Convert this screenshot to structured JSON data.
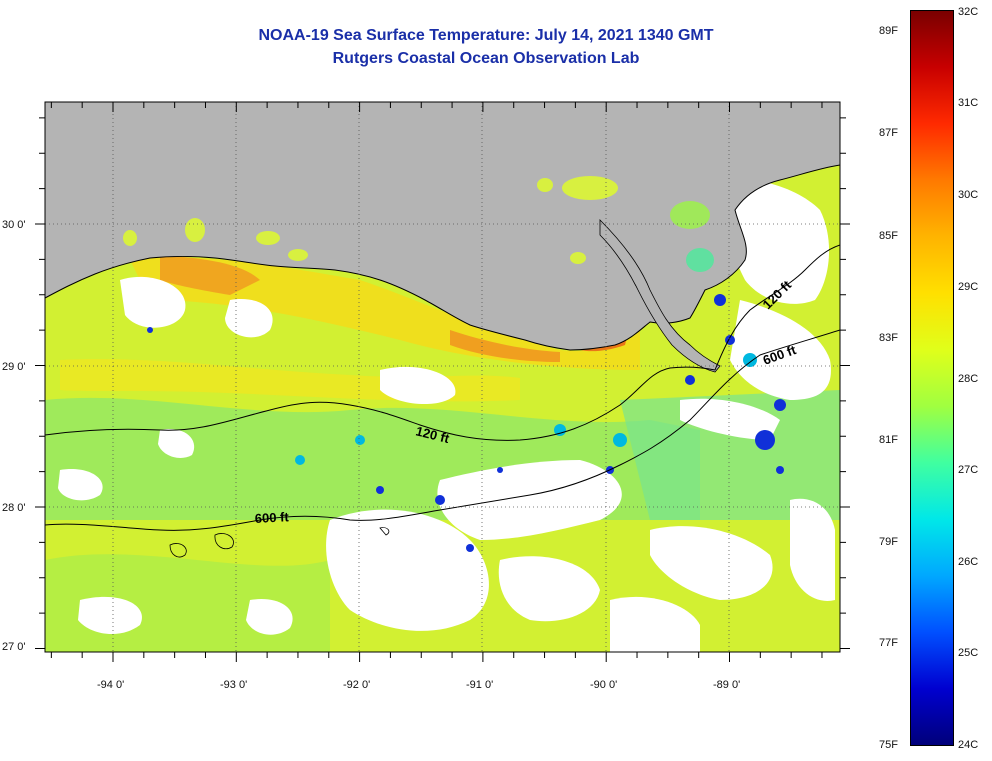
{
  "title": {
    "line1": "NOAA-19 Sea Surface Temperature:  July 14, 2021 1340 GMT",
    "line2": "Rutgers Coastal Ocean Observation Lab"
  },
  "axes": {
    "lon_labels": [
      "-94 0'",
      "-93 0'",
      "-92 0'",
      "-91 0'",
      "-90 0'",
      "-89 0'"
    ],
    "lat_labels": [
      "30 0'",
      "29 0'",
      "28 0'",
      "27 0'"
    ]
  },
  "contours": {
    "label_120_west": "120 ft",
    "label_600_west": "600 ft",
    "label_120_east": "120 ft",
    "label_600_east": "600 ft"
  },
  "colorbar": {
    "f_labels": [
      "89F",
      "87F",
      "85F",
      "83F",
      "81F",
      "79F",
      "77F",
      "75F"
    ],
    "c_labels": [
      "32C",
      "31C",
      "30C",
      "29C",
      "28C",
      "27C",
      "26C",
      "25C",
      "24C"
    ],
    "colors": [
      "#7a0000",
      "#c80000",
      "#ff2a00",
      "#ff7a00",
      "#ffb400",
      "#ffe000",
      "#e0ff1a",
      "#a0ff40",
      "#40ffa0",
      "#00e8e8",
      "#00a8ff",
      "#0050ff",
      "#0000d0",
      "#00007a"
    ]
  },
  "colors": {
    "land": "#b4b4b4",
    "title": "#1a2fa8",
    "no_data": "#ffffff"
  }
}
